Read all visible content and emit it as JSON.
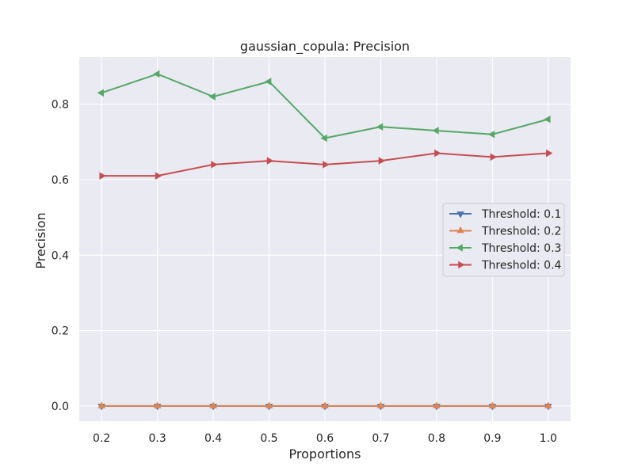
{
  "chart_data": {
    "type": "line",
    "title": "gaussian_copula: Precision",
    "xlabel": "Proportions",
    "ylabel": "Precision",
    "x": [
      0.2,
      0.3,
      0.4,
      0.5,
      0.6,
      0.7,
      0.8,
      0.9,
      1.0
    ],
    "x_tick_labels": [
      "0.2",
      "0.3",
      "0.4",
      "0.5",
      "0.6",
      "0.7",
      "0.8",
      "0.9",
      "1.0"
    ],
    "y_ticks": [
      0.0,
      0.2,
      0.4,
      0.6,
      0.8
    ],
    "y_tick_labels": [
      "0.0",
      "0.2",
      "0.4",
      "0.6",
      "0.8"
    ],
    "xlim": [
      0.16,
      1.04
    ],
    "ylim": [
      -0.04,
      0.925
    ],
    "grid": true,
    "legend_position": "center-right",
    "series": [
      {
        "name": "Threshold: 0.1",
        "marker": "triangle-down",
        "color": "#4c72b0",
        "values": [
          0,
          0,
          0,
          0,
          0,
          0,
          0,
          0,
          0
        ]
      },
      {
        "name": "Threshold: 0.2",
        "marker": "triangle-up",
        "color": "#dd8452",
        "values": [
          0,
          0,
          0,
          0,
          0,
          0,
          0,
          0,
          0
        ]
      },
      {
        "name": "Threshold: 0.3",
        "marker": "triangle-left",
        "color": "#55a868",
        "values": [
          0.83,
          0.88,
          0.82,
          0.86,
          0.71,
          0.74,
          0.73,
          0.72,
          0.76
        ]
      },
      {
        "name": "Threshold: 0.4",
        "marker": "triangle-right",
        "color": "#c44e52",
        "values": [
          0.61,
          0.61,
          0.64,
          0.65,
          0.64,
          0.65,
          0.67,
          0.66,
          0.67
        ]
      }
    ]
  }
}
